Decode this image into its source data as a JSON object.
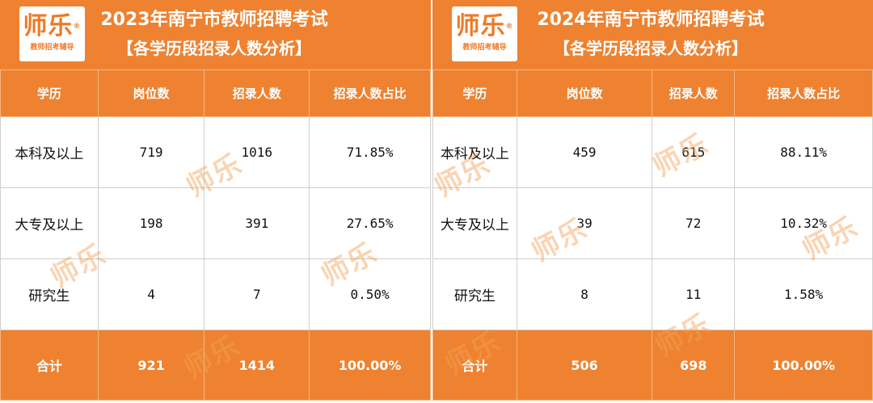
{
  "brand": {
    "name": "师乐",
    "registered": "®",
    "tagline": "教师招考辅导"
  },
  "panels": [
    {
      "title_line1": "2023年南宁市教师招聘考试",
      "title_line2": "【各学历段招录人数分析】",
      "headers": [
        "学历",
        "岗位数",
        "招录人数",
        "招录人数占比"
      ],
      "rows": [
        [
          "本科及以上",
          "719",
          "1016",
          "71.85%"
        ],
        [
          "大专及以上",
          "198",
          "391",
          "27.65%"
        ],
        [
          "研究生",
          "4",
          "7",
          "0.50%"
        ]
      ],
      "total": [
        "合计",
        "921",
        "1414",
        "100.00%"
      ]
    },
    {
      "title_line1": "2024年南宁市教师招聘考试",
      "title_line2": "【各学历段招录人数分析】",
      "headers": [
        "学历",
        "岗位数",
        "招录人数",
        "招录人数占比"
      ],
      "rows": [
        [
          "本科及以上",
          "459",
          "615",
          "88.11%"
        ],
        [
          "大专及以上",
          "39",
          "72",
          "10.32%"
        ],
        [
          "研究生",
          "8",
          "11",
          "1.58%"
        ]
      ],
      "total": [
        "合计",
        "506",
        "698",
        "100.00%"
      ]
    }
  ],
  "colors": {
    "accent": "#ee8230",
    "header_text": "#ffffff",
    "body_text": "#111111"
  }
}
